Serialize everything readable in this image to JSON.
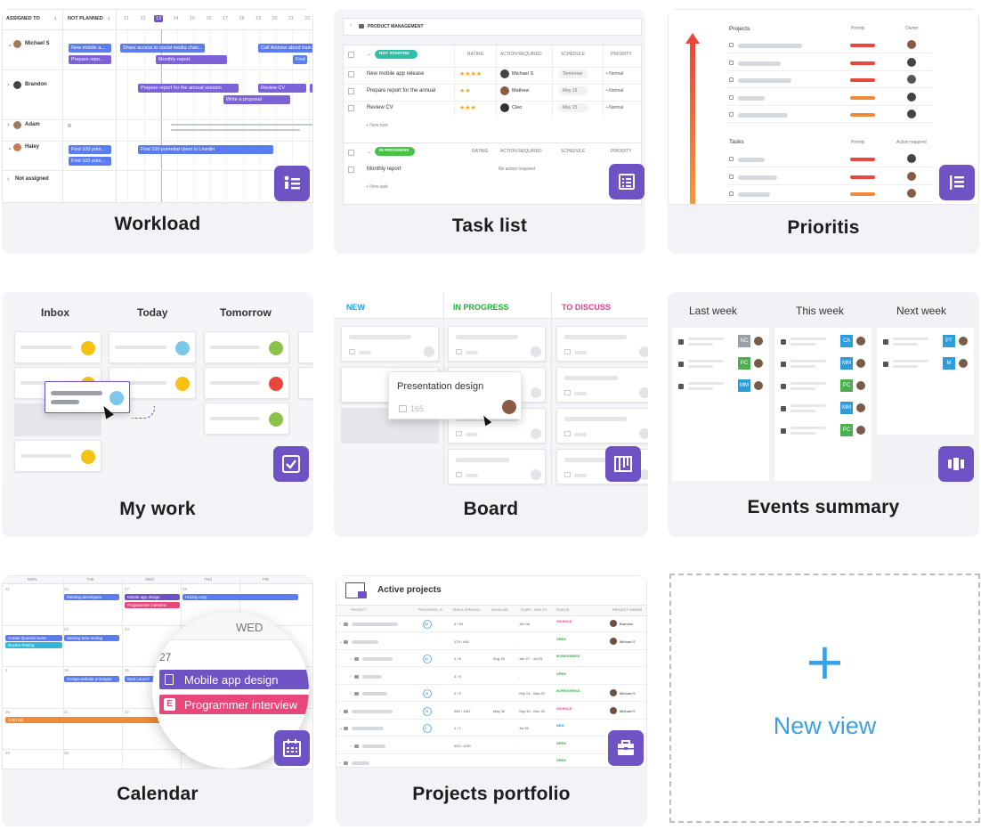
{
  "views": {
    "workload": {
      "label": "Workload",
      "header_assigned": "ASSIGNED TO",
      "header_not_planned": "NOT PLANNED",
      "days": [
        "11",
        "12",
        "13",
        "14",
        "15",
        "16",
        "17",
        "18",
        "19",
        "20",
        "21",
        "22"
      ],
      "rows": [
        {
          "name": "Michael S",
          "bars": [
            "New mobile a...",
            "Prepare repo...",
            "Share access to social media chan...",
            "Monthly report",
            "Call Andrew about train...",
            "Find"
          ]
        },
        {
          "name": "Brandon",
          "bars": [
            "Prepare report for the annual session",
            "Review CV",
            "Write a proposal"
          ]
        },
        {
          "name": "Adam",
          "bars": []
        },
        {
          "name": "Haley",
          "bars": [
            "Find 100 pote...",
            "Find 100 pote...",
            "Find 100 potential client in Linedin"
          ]
        },
        {
          "name": "Not assigned",
          "bars": []
        }
      ]
    },
    "task_list": {
      "label": "Task list",
      "group": "PRODUCT MANAGEMENT",
      "columns": [
        "RATING",
        "ACTION REQUIRED",
        "SCHEDULE",
        "PRIORITY"
      ],
      "status_not_started": "NOT STARTED",
      "status_in_progress": "IN PROGRESS",
      "tasks": [
        {
          "name": "New mobile app release",
          "rating": "★★★★",
          "owner": "Michael S",
          "schedule": "Tomorrow",
          "priority": "• Normal"
        },
        {
          "name": "Prepare report for the annual",
          "rating": "★★",
          "owner": "Mathew",
          "schedule": "May 15",
          "priority": "• Normal"
        },
        {
          "name": "Review CV",
          "rating": "★★★",
          "owner": "Cleo",
          "schedule": "May 15",
          "priority": "• Normal"
        }
      ],
      "new_task": "+ New task",
      "progress_task": {
        "name": "Monthly report",
        "action": "No action required"
      }
    },
    "prioritis": {
      "label": "Prioritis",
      "projects_header": "Projects",
      "tasks_header": "Tasks",
      "priority_header": "Priority",
      "owner_header": "Owner",
      "action_header": "Action required"
    },
    "my_work": {
      "label": "My work",
      "columns": [
        "Inbox",
        "Today",
        "Tomorrow"
      ]
    },
    "board": {
      "label": "Board",
      "columns": [
        "NEW",
        "IN PROGRESS",
        "TO DISCUSS"
      ],
      "column_colors": [
        "#2d9cdb",
        "#27ae3a",
        "#e0408c"
      ],
      "drag_card": {
        "title": "Presentation design",
        "count": "165"
      }
    },
    "events": {
      "label": "Events summary",
      "columns": [
        "Last week",
        "This week",
        "Next week"
      ],
      "chips_last": [
        "NC",
        "PC",
        "MM"
      ],
      "chips_this": [
        "CA",
        "MM",
        "PC",
        "MM",
        "PC"
      ],
      "chips_next": [
        "PT",
        "M"
      ]
    },
    "calendar": {
      "label": "Calendar",
      "weekdays": [
        "MON",
        "TUE",
        "WED",
        "THU",
        "FRI"
      ],
      "zoom_day": "WED",
      "zoom_date": "27",
      "zoom_events": [
        "Mobile app design",
        "Programmer interview"
      ],
      "small_events": [
        "Meeting developers",
        "Mobile app design",
        "Programmer interview",
        "HotJay corp.",
        "Create Questionnaire",
        "Rocket Testing",
        "Starting beta testing",
        "Design website prototype",
        "Best Launch",
        "John Hill"
      ],
      "dates": [
        "21",
        "22",
        "27",
        "28",
        "23",
        "24",
        "4",
        "15",
        "16",
        "26",
        "21",
        "22",
        "25",
        "26",
        "28"
      ]
    },
    "portfolio": {
      "label": "Projects portfolio",
      "title": "Active projects",
      "columns": [
        "PROJECT",
        "PROGRESS, %",
        "TASKS OPEN/ALL",
        "DEADLINE",
        "START - END DT.",
        "STATUS",
        "PROJECT OWNER"
      ],
      "rows": [
        {
          "progress": "52",
          "tasks": "5 / 54",
          "deadline": "",
          "dates": "Jun 06",
          "status": "ON HOLD",
          "owner": "Brandon"
        },
        {
          "progress": "",
          "tasks": "175 / 446",
          "deadline": "",
          "dates": "-",
          "status": "OPEN",
          "owner": "Michael S"
        },
        {
          "progress": "42",
          "tasks": "3 / 8",
          "deadline": "Aug 18",
          "dates": "Jan 27 - Jul 25",
          "status": "IN PROGRESS",
          "owner": ""
        },
        {
          "progress": "",
          "tasks": "4 / 9",
          "deadline": "",
          "dates": "-",
          "status": "OPEN",
          "owner": ""
        },
        {
          "progress": "15",
          "tasks": "2 / 5",
          "deadline": "",
          "dates": "Sep 01 - Mar 29",
          "status": "IN PROGRESS",
          "owner": "Michael S"
        },
        {
          "progress": "75",
          "tasks": "945 / 1181",
          "deadline": "May 30",
          "dates": "Sep 30 - Nov 30",
          "status": "ON HOLD",
          "owner": "Michael S"
        },
        {
          "progress": "0",
          "tasks": "1 / 1",
          "deadline": "",
          "dates": "Jul 26",
          "status": "NEW",
          "owner": ""
        },
        {
          "progress": "",
          "tasks": "403 / 1199",
          "deadline": "",
          "dates": "-",
          "status": "OPEN",
          "owner": ""
        },
        {
          "progress": "",
          "tasks": "",
          "deadline": "",
          "dates": "",
          "status": "OPEN",
          "owner": ""
        }
      ]
    },
    "new_view": {
      "icon": "+",
      "label": "New view"
    }
  },
  "colors": {
    "accent": "#6f52c3",
    "blue": "#5b7cf0",
    "new_view": "#3aa0e6",
    "priority_red": "#e8473a",
    "priority_orange": "#f08a36"
  }
}
